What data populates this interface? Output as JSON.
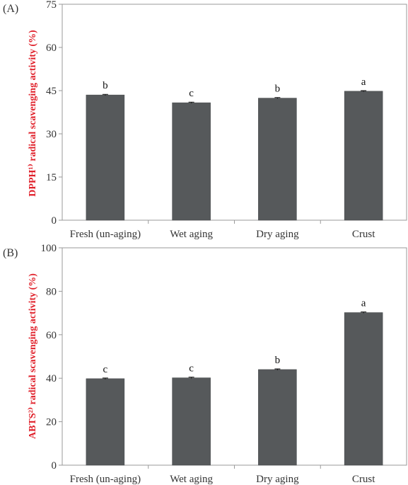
{
  "chart_data": [
    {
      "type": "bar",
      "panel_label": "(A)",
      "ylabel": "DPPH¹⁾ radical scavenging activity (%)",
      "categories": [
        "Fresh (un-aging)",
        "Wet aging",
        "Dry aging",
        "Crust"
      ],
      "values": [
        43.5,
        40.8,
        42.4,
        44.8
      ],
      "error": [
        0.2,
        0.2,
        0.2,
        0.2
      ],
      "significance": [
        "b",
        "c",
        "b",
        "a"
      ],
      "ylim": [
        0,
        75
      ],
      "yticks": [
        0,
        15,
        30,
        45,
        60,
        75
      ],
      "grid": false,
      "bar_color": "#56595b",
      "label_color": "#e0202a"
    },
    {
      "type": "bar",
      "panel_label": "(B)",
      "ylabel": "ABTS²⁾ radical scavenging activity (%)",
      "categories": [
        "Fresh (un-aging)",
        "Wet aging",
        "Dry aging",
        "Crust"
      ],
      "values": [
        39.8,
        40.2,
        44.0,
        70.2
      ],
      "error": [
        0.3,
        0.3,
        0.3,
        0.3
      ],
      "significance": [
        "c",
        "c",
        "b",
        "a"
      ],
      "ylim": [
        0,
        100
      ],
      "yticks": [
        0,
        20,
        40,
        60,
        80,
        100
      ],
      "grid": false,
      "bar_color": "#56595b",
      "label_color": "#e0202a"
    }
  ]
}
